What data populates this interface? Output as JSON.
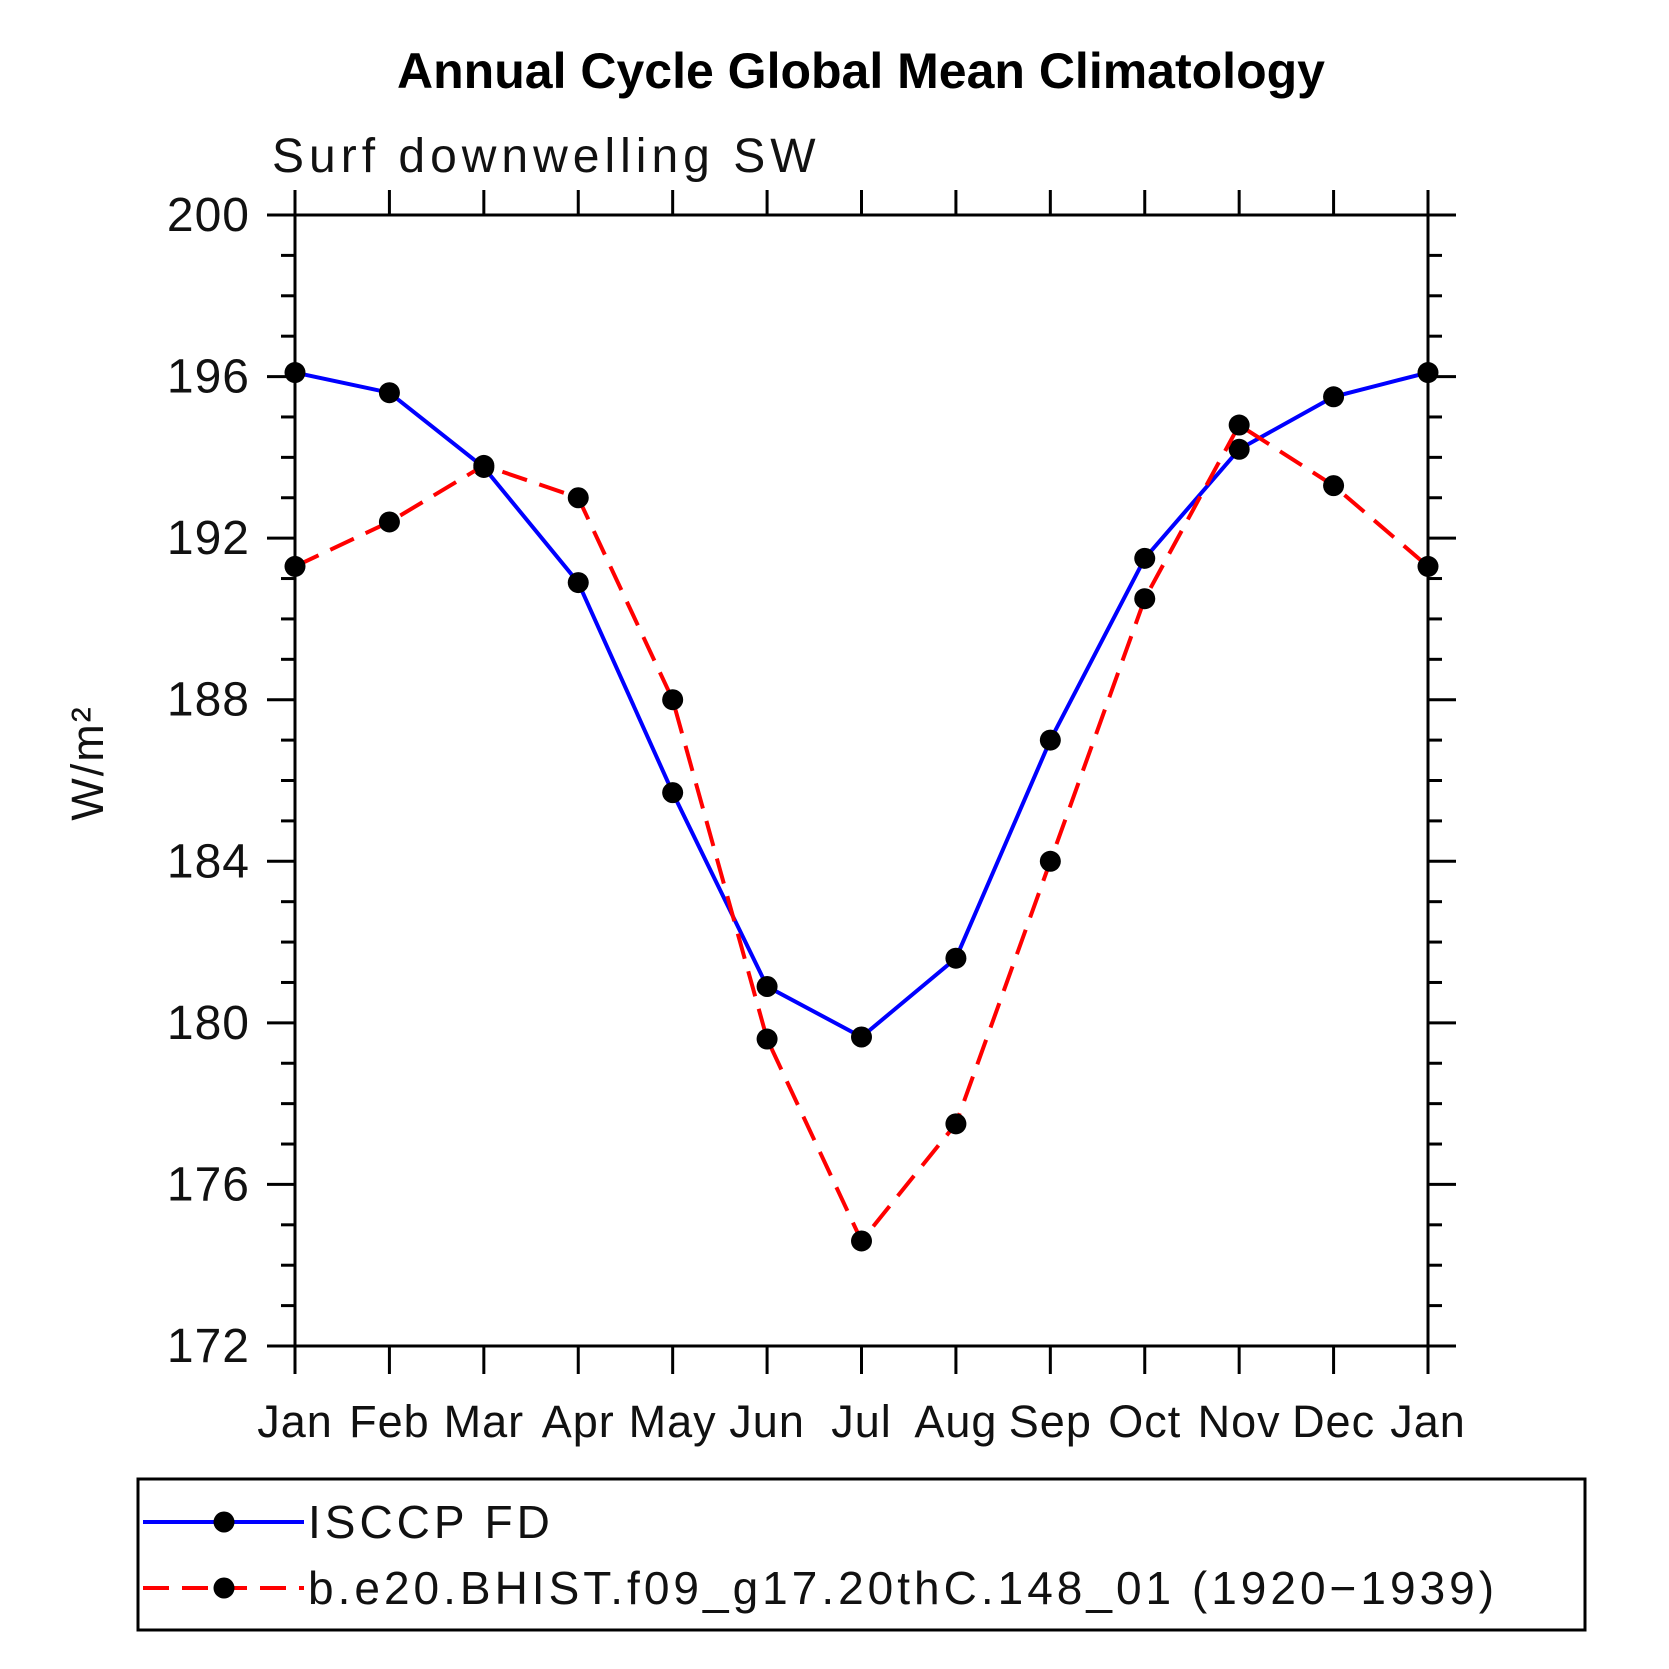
{
  "header": {
    "title": "Annual Cycle Global Mean Climatology",
    "subtitle": "Surf downwelling SW"
  },
  "chart_data": {
    "type": "line",
    "title": "Annual Cycle Global Mean Climatology",
    "subtitle": "Surf downwelling SW",
    "categories": [
      "Jan",
      "Feb",
      "Mar",
      "Apr",
      "May",
      "Jun",
      "Jul",
      "Aug",
      "Sep",
      "Oct",
      "Nov",
      "Dec",
      "Jan"
    ],
    "xlabel": "",
    "ylabel": "W/m²",
    "ylim": [
      172,
      200
    ],
    "yticks": [
      172,
      176,
      180,
      184,
      188,
      192,
      196,
      200
    ],
    "minor_tick_step": 1,
    "grid": false,
    "legend_position": "bottom",
    "colors": {
      "axis": "#000000",
      "marker": "#000000",
      "series1": "#0000ff",
      "series2": "#ff0000"
    },
    "series": [
      {
        "name": "ISCCP FD",
        "color": "#0000ff",
        "style": "solid",
        "marker": "circle",
        "values": [
          196.1,
          195.6,
          193.75,
          190.9,
          185.7,
          180.9,
          179.65,
          181.6,
          187.0,
          191.5,
          194.2,
          195.5,
          196.1
        ]
      },
      {
        "name": "b.e20.BHIST.f09_g17.20thC.148_01 (1920−1939)",
        "color": "#ff0000",
        "style": "dashed",
        "marker": "circle",
        "values": [
          191.3,
          192.4,
          193.8,
          193.0,
          188.0,
          179.6,
          174.6,
          177.5,
          184.0,
          190.5,
          194.8,
          193.3,
          191.3
        ]
      }
    ]
  }
}
